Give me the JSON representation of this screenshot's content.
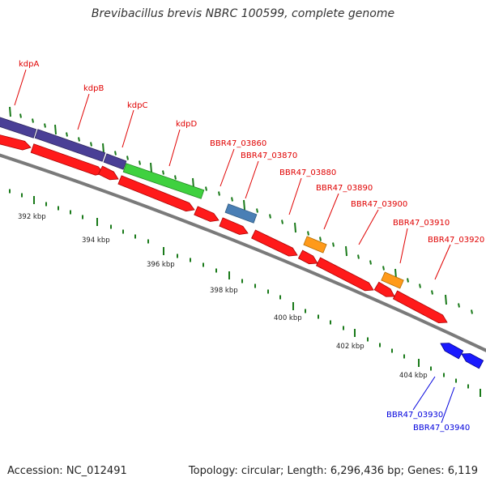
{
  "title": "Brevibacillus brevis NBRC 100599, complete genome",
  "accession": "Accession: NC_012491",
  "stats": "Topology: circular; Length: 6,296,436 bp; Genes: 6,119",
  "colors": {
    "backbone": "#8c8c8c",
    "red_gene": "#ff1a1a",
    "purple_gene": "#4a3f96",
    "green_gene": "#3fd13f",
    "steelblue_gene": "#4a7fb5",
    "orange_gene": "#ff9a1a",
    "blue_gene": "#1a1aff",
    "tick": "#1a7a1a",
    "red_label": "#e00000",
    "blue_label": "#0000dd"
  },
  "scale": {
    "labels": [
      "392 kbp",
      "394 kbp",
      "396 kbp",
      "398 kbp",
      "400 kbp",
      "402 kbp",
      "404 kbp"
    ]
  },
  "gene_labels": [
    {
      "name": "kdpA",
      "color": "red"
    },
    {
      "name": "kdpB",
      "color": "red"
    },
    {
      "name": "kdpC",
      "color": "red"
    },
    {
      "name": "kdpD",
      "color": "red"
    },
    {
      "name": "BBR47_03860",
      "color": "red"
    },
    {
      "name": "BBR47_03870",
      "color": "red"
    },
    {
      "name": "BBR47_03880",
      "color": "red"
    },
    {
      "name": "BBR47_03890",
      "color": "red"
    },
    {
      "name": "BBR47_03900",
      "color": "red"
    },
    {
      "name": "BBR47_03910",
      "color": "red"
    },
    {
      "name": "BBR47_03920",
      "color": "red"
    },
    {
      "name": "BBR47_03930",
      "color": "blue"
    },
    {
      "name": "BBR47_03940",
      "color": "blue"
    }
  ]
}
